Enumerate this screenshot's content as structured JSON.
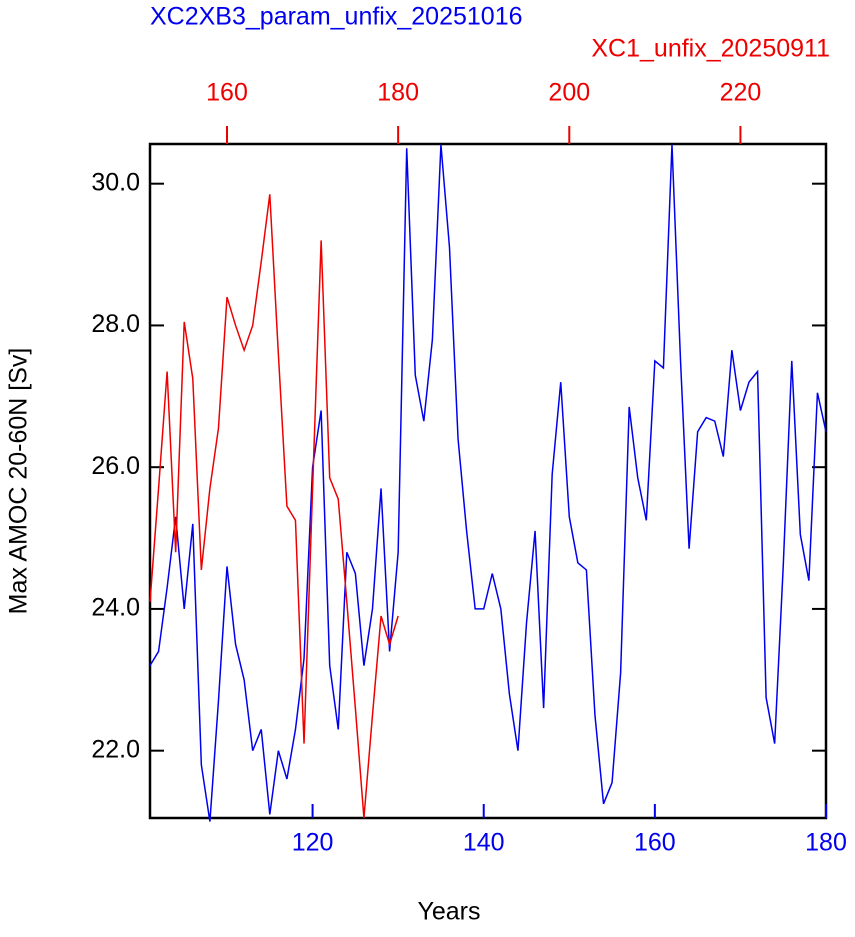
{
  "chart_data": {
    "type": "line",
    "xlabel": "Years",
    "ylabel": "Max AMOC 20-60N [Sv]",
    "xlim": [
      101,
      180
    ],
    "xticks": [
      120,
      140,
      160,
      180
    ],
    "x2lim": [
      151,
      230
    ],
    "x2ticks": [
      160,
      180,
      200,
      220
    ],
    "ylim": [
      21.05,
      30.56
    ],
    "yticks": [
      {
        "value": 22,
        "label": "22.0"
      },
      {
        "value": 24,
        "label": "24.0"
      },
      {
        "value": 26,
        "label": "26.0"
      },
      {
        "value": 28,
        "label": "28.0"
      },
      {
        "value": 30,
        "label": "30.0"
      }
    ],
    "series": [
      {
        "name": "XC2XB3_param_unfix_20251016",
        "color": "#0000ee",
        "axis": "x",
        "x": [
          101,
          102,
          103,
          104,
          105,
          106,
          107,
          108,
          109,
          110,
          111,
          112,
          113,
          114,
          115,
          116,
          117,
          118,
          119,
          120,
          121,
          122,
          123,
          124,
          125,
          126,
          127,
          128,
          129,
          130,
          131,
          132,
          133,
          134,
          135,
          136,
          137,
          138,
          139,
          140,
          141,
          142,
          143,
          144,
          145,
          146,
          147,
          148,
          149,
          150,
          151,
          152,
          153,
          154,
          155,
          156,
          157,
          158,
          159,
          160,
          161,
          162,
          163,
          164,
          165,
          166,
          167,
          168,
          169,
          170,
          171,
          172,
          173,
          174,
          175,
          176,
          177,
          178,
          179,
          180
        ],
        "values": [
          23.2,
          23.4,
          24.3,
          25.3,
          24.0,
          25.2,
          21.8,
          21.0,
          22.7,
          24.6,
          23.5,
          23.0,
          22.0,
          22.3,
          21.1,
          22.0,
          21.6,
          22.3,
          23.3,
          26.0,
          26.8,
          23.2,
          22.3,
          24.8,
          24.5,
          23.2,
          24.0,
          25.7,
          23.4,
          24.8,
          30.5,
          27.3,
          26.65,
          27.8,
          30.55,
          29.1,
          26.4,
          25.1,
          24.0,
          24.0,
          24.5,
          24.0,
          22.8,
          22.0,
          23.8,
          25.1,
          22.6,
          25.9,
          27.2,
          25.3,
          24.65,
          24.55,
          22.5,
          21.25,
          21.55,
          23.1,
          26.85,
          25.85,
          25.25,
          27.5,
          27.4,
          30.55,
          27.5,
          24.85,
          26.5,
          26.7,
          26.65,
          26.15,
          27.65,
          26.8,
          27.2,
          27.35,
          22.75,
          22.1,
          24.6,
          27.5,
          25.05,
          24.4,
          27.05,
          26.5
        ]
      },
      {
        "name": "XC1_unfix_20250911",
        "color": "#ee0000",
        "axis": "x2",
        "x": [
          151,
          152,
          153,
          154,
          155,
          156,
          157,
          158,
          159,
          160,
          161,
          162,
          163,
          164,
          165,
          166,
          167,
          168,
          169,
          170,
          171,
          172,
          173,
          174,
          175,
          176,
          177,
          178,
          179,
          180
        ],
        "values": [
          24.1,
          25.7,
          27.35,
          24.8,
          28.05,
          27.25,
          24.55,
          25.7,
          26.55,
          28.4,
          28.0,
          27.65,
          28.0,
          28.9,
          29.85,
          27.6,
          25.45,
          25.25,
          22.1,
          25.7,
          29.2,
          25.85,
          25.55,
          24.1,
          22.6,
          21.05,
          22.5,
          23.9,
          23.5,
          23.9
        ]
      }
    ]
  }
}
